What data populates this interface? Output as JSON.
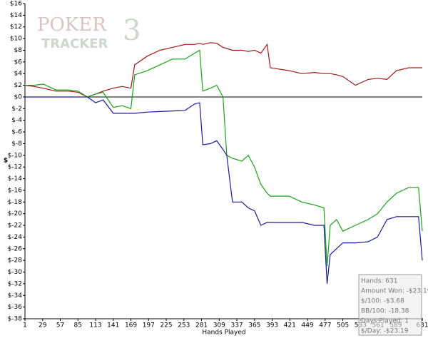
{
  "chart_data": {
    "type": "line",
    "logo": [
      "POKER",
      "3",
      "TRACKER"
    ],
    "xlabel": "Hands Played",
    "ylabel": "$",
    "x": [
      1,
      15,
      30,
      50,
      70,
      85,
      100,
      113,
      125,
      141,
      155,
      169,
      175,
      195,
      215,
      235,
      255,
      270,
      278,
      283,
      295,
      305,
      315,
      321,
      330,
      345,
      355,
      365,
      375,
      385,
      390,
      420,
      440,
      460,
      475,
      480,
      485,
      495,
      505,
      525,
      545,
      560,
      575,
      590,
      610,
      625,
      631
    ],
    "series": [
      {
        "color": "#a01818",
        "values": [
          2,
          1.8,
          1.5,
          1,
          1,
          0.8,
          0,
          0.5,
          1,
          1.5,
          1.8,
          1.5,
          5.5,
          7,
          8,
          8.5,
          9,
          9,
          9.2,
          9,
          9.3,
          9.2,
          8.5,
          8.3,
          8,
          8,
          7.8,
          8,
          7.5,
          9,
          5,
          4.5,
          4,
          4.2,
          4,
          4,
          4,
          3.8,
          3.5,
          2,
          3,
          3.2,
          3,
          4.5,
          5,
          5,
          5
        ]
      },
      {
        "color": "#1aa01a",
        "values": [
          2,
          2,
          2.2,
          1.2,
          1.2,
          1,
          0,
          0.5,
          0.8,
          -1.8,
          -1.5,
          -2,
          3.8,
          4.5,
          5.5,
          6.5,
          6.5,
          7.5,
          8,
          1,
          1.5,
          2,
          0,
          -10,
          -10.5,
          -11,
          -10,
          -12,
          -15,
          -16.5,
          -17,
          -17,
          -18,
          -18.5,
          -19,
          -29,
          -22,
          -21,
          -23,
          -22,
          -21,
          -20,
          -18,
          -16.5,
          -15.5,
          -15.5,
          -23
        ]
      },
      {
        "color": "#1a1a9a",
        "values": [
          0,
          0,
          0,
          0,
          0,
          0,
          0,
          -1,
          -0.5,
          -2.8,
          -2.8,
          -2.8,
          -2.8,
          -2.6,
          -2.5,
          -2.4,
          -2.3,
          -1.2,
          -1,
          -8.2,
          -8,
          -7.5,
          -9,
          -10,
          -18,
          -18,
          -19,
          -19.5,
          -22,
          -21.5,
          -21.5,
          -21.5,
          -21.5,
          -22,
          -22,
          -32,
          -27,
          -26,
          -25,
          -25,
          -24.8,
          -24,
          -21,
          -20.5,
          -20.5,
          -20.5,
          -28
        ]
      }
    ],
    "xlim": [
      1,
      631
    ],
    "xticks": [
      1,
      29,
      57,
      85,
      113,
      141,
      169,
      197,
      225,
      253,
      281,
      309,
      337,
      365,
      393,
      421,
      449,
      477,
      505,
      533,
      561,
      589,
      631
    ],
    "ylim": [
      -38,
      16
    ],
    "yticks": [
      {
        "value": 16,
        "label": "$16"
      },
      {
        "value": 14,
        "label": "$14"
      },
      {
        "value": 12,
        "label": "$12"
      },
      {
        "value": 10,
        "label": "$10"
      },
      {
        "value": 8,
        "label": "$8"
      },
      {
        "value": 6,
        "label": "$6"
      },
      {
        "value": 4,
        "label": "$4"
      },
      {
        "value": 2,
        "label": "$2"
      },
      {
        "value": 0,
        "label": "$0"
      },
      {
        "value": -2,
        "label": "$-2"
      },
      {
        "value": -4,
        "label": "$-4"
      },
      {
        "value": -6,
        "label": "$-6"
      },
      {
        "value": -8,
        "label": "$-8"
      },
      {
        "value": -10,
        "label": "$-10"
      },
      {
        "value": -12,
        "label": "$-12"
      },
      {
        "value": -14,
        "label": "$-14"
      },
      {
        "value": -16,
        "label": "$-16"
      },
      {
        "value": -18,
        "label": "$-18"
      },
      {
        "value": -20,
        "label": "$-20"
      },
      {
        "value": -22,
        "label": "$-22"
      },
      {
        "value": -24,
        "label": "$-24"
      },
      {
        "value": -26,
        "label": "$-26"
      },
      {
        "value": -28,
        "label": "$-28"
      },
      {
        "value": -30,
        "label": "$-30"
      },
      {
        "value": -32,
        "label": "$-32"
      },
      {
        "value": -34,
        "label": "$-34"
      },
      {
        "value": -36,
        "label": "$-36"
      },
      {
        "value": -38,
        "label": "$-38"
      }
    ],
    "annotations": [
      "Hands: 631",
      "Amount Won: -$23.19",
      "$/100: -$3.68",
      "BB/100: -18.38",
      "Days Played: 1",
      "$/Day: -$23.19"
    ]
  }
}
